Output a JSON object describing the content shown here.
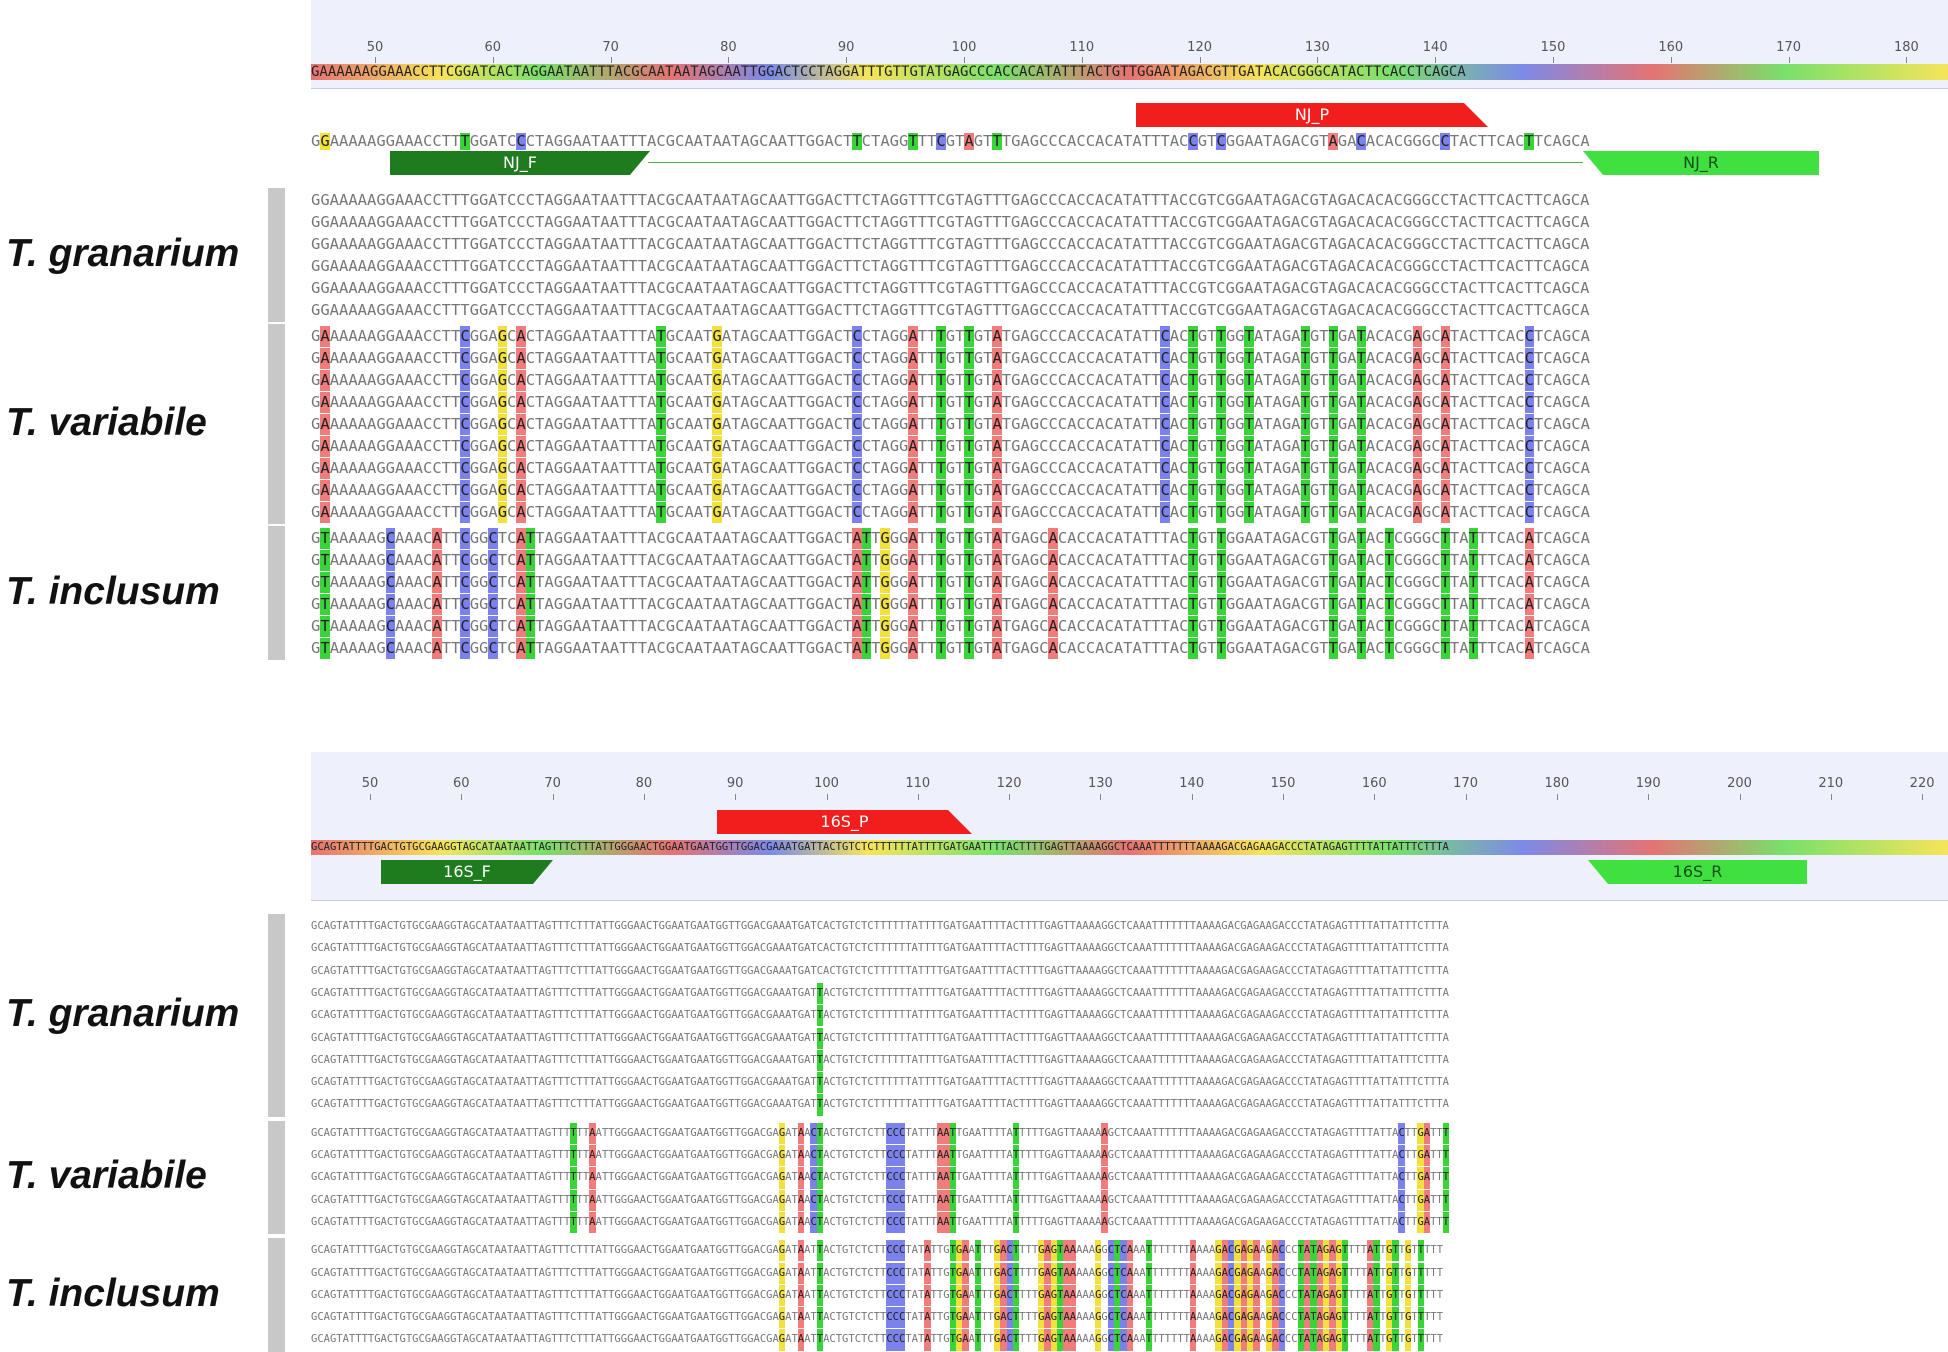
{
  "panel1": {
    "ruler_ticks": [
      50,
      60,
      70,
      80,
      90,
      100,
      110,
      120,
      130,
      140,
      150,
      160,
      170,
      180
    ],
    "consensus": "GAAAAAAGGAAACCTTCGGATCACTAGGAATAATTTACGCAATAATAGCAATTGGACTCCTAGGATTTGTTGTATGAGCCCACCACATATTTACTGTTGGAATAGACGTTGATACACGGGCATACTTCACCTCAGCA",
    "reference": "GGAAAAAGGAAACCTTTGGATCCCTAGGAATAATTTACGCAATAATAGCAATTGGACTTCTAGGTTTCGTAGTTTGAGCCCACCACATATTTACCGTCGGAATAGACGTAGACACACGGGCCTACTTCACTTCAGCA",
    "primers": {
      "forward": "NJ_F",
      "probe": "NJ_P",
      "reverse": "NJ_R"
    },
    "groups": [
      {
        "species": "T. granarium",
        "rows": [
          "GGAAAAAGGAAACCTTTGGATCCCTAGGAATAATTTACGCAATAATAGCAATTGGACTTCTAGGTTTCGTAGTTTGAGCCCACCACATATTTACCGTCGGAATAGACGTAGACACACGGGCCTACTTCACTTCAGCA",
          "GGAAAAAGGAAACCTTTGGATCCCTAGGAATAATTTACGCAATAATAGCAATTGGACTTCTAGGTTTCGTAGTTTGAGCCCACCACATATTTACCGTCGGAATAGACGTAGACACACGGGCCTACTTCACTTCAGCA",
          "GGAAAAAGGAAACCTTTGGATCCCTAGGAATAATTTACGCAATAATAGCAATTGGACTTCTAGGTTTCGTAGTTTGAGCCCACCACATATTTACCGTCGGAATAGACGTAGACACACGGGCCTACTTCACTTCAGCA",
          "GGAAAAAGGAAACCTTTGGATCCCTAGGAATAATTTACGCAATAATAGCAATTGGACTTCTAGGTTTCGTAGTTTGAGCCCACCACATATTTACCGTCGGAATAGACGTAGACACACGGGCCTACTTCACTTCAGCA",
          "GGAAAAAGGAAACCTTTGGATCCCTAGGAATAATTTACGCAATAATAGCAATTGGACTTCTAGGTTTCGTAGTTTGAGCCCACCACATATTTACCGTCGGAATAGACGTAGACACACGGGCCTACTTCACTTCAGCA",
          "GGAAAAAGGAAACCTTTGGATCCCTAGGAATAATTTACGCAATAATAGCAATTGGACTTCTAGGTTTCGTAGTTTGAGCCCACCACATATTTACCGTCGGAATAGACGTAGACACACGGGCCTACTTCACTTCAGCA"
        ]
      },
      {
        "species": "T. variabile",
        "rows": [
          "GAAAAAAGGAAACCTTCGGAGCACTAGGAATAATTTATGCAATGATAGCAATTGGACTCCTAGGATTTGTTGTATGAGCCCACCACATATTCACTGTTGGTATAGATGTTGATACACGAGCATACTTCACCTCAGCA",
          "GAAAAAAGGAAACCTTCGGAGCACTAGGAATAATTTATGCAATGATAGCAATTGGACTCCTAGGATTTGTTGTATGAGCCCACCACATATTCACTGTTGGTATAGATGTTGATACACGAGCATACTTCACCTCAGCA",
          "GAAAAAAGGAAACCTTCGGAGCACTAGGAATAATTTATGCAATGATAGCAATTGGACTCCTAGGATTTGTTGTATGAGCCCACCACATATTCACTGTTGGTATAGATGTTGATACACGAGCATACTTCACCTCAGCA",
          "GAAAAAAGGAAACCTTCGGAGCACTAGGAATAATTTATGCAATGATAGCAATTGGACTCCTAGGATTTGTTGTATGAGCCCACCACATATTCACTGTTGGTATAGATGTTGATACACGAGCATACTTCACCTCAGCA",
          "GAAAAAAGGAAACCTTCGGAGCACTAGGAATAATTTATGCAATGATAGCAATTGGACTCCTAGGATTTGTTGTATGAGCCCACCACATATTCACTGTTGGTATAGATGTTGATACACGAGCATACTTCACCTCAGCA",
          "GAAAAAAGGAAACCTTCGGAGCACTAGGAATAATTTATGCAATGATAGCAATTGGACTCCTAGGATTTGTTGTATGAGCCCACCACATATTCACTGTTGGTATAGATGTTGATACACGAGCATACTTCACCTCAGCA",
          "GAAAAAAGGAAACCTTCGGAGCACTAGGAATAATTTATGCAATGATAGCAATTGGACTCCTAGGATTTGTTGTATGAGCCCACCACATATTCACTGTTGGTATAGATGTTGATACACGAGCATACTTCACCTCAGCA",
          "GAAAAAAGGAAACCTTCGGAGCACTAGGAATAATTTATGCAATGATAGCAATTGGACTCCTAGGATTTGTTGTATGAGCCCACCACATATTCACTGTTGGTATAGATGTTGATACACGAGCATACTTCACCTCAGCA",
          "GAAAAAAGGAAACCTTCGGAGCACTAGGAATAATTTATGCAATGATAGCAATTGGACTCCTAGGATTTGTTGTATGAGCCCACCACATATTCACTGTTGGTATAGATGTTGATACACGAGCATACTTCACCTCAGCA"
        ]
      },
      {
        "species": "T. inclusum",
        "rows": [
          "GTAAAAAGCAAACATTCGGCTCATTAGGAATAATTTACGCAATAATAGCAATTGGACTATTGGGATTTGTTGTATGAGCACACCACATATTTACTGTTGGAATAGACGTTGATACTCGGGCTTATTTCACATCAGCA",
          "GTAAAAAGCAAACATTCGGCTCATTAGGAATAATTTACGCAATAATAGCAATTGGACTATTGGGATTTGTTGTATGAGCACACCACATATTTACTGTTGGAATAGACGTTGATACTCGGGCTTATTTCACATCAGCA",
          "GTAAAAAGCAAACATTCGGCTCATTAGGAATAATTTACGCAATAATAGCAATTGGACTATTGGGATTTGTTGTATGAGCACACCACATATTTACTGTTGGAATAGACGTTGATACTCGGGCTTATTTCACATCAGCA",
          "GTAAAAAGCAAACATTCGGCTCATTAGGAATAATTTACGCAATAATAGCAATTGGACTATTGGGATTTGTTGTATGAGCACACCACATATTTACTGTTGGAATAGACGTTGATACTCGGGCTTATTTCACATCAGCA",
          "GTAAAAAGCAAACATTCGGCTCATTAGGAATAATTTACGCAATAATAGCAATTGGACTATTGGGATTTGTTGTATGAGCACACCACATATTTACTGTTGGAATAGACGTTGATACTCGGGCTTATTTCACATCAGCA",
          "GTAAAAAGCAAACATTCGGCTCATTAGGAATAATTTACGCAATAATAGCAATTGGACTATTGGGATTTGTTGTATGAGCACACCACATATTTACTGTTGGAATAGACGTTGATACTCGGGCTTATTTCACATCAGCA"
        ]
      }
    ]
  },
  "panel2": {
    "ruler_ticks": [
      50,
      60,
      70,
      80,
      90,
      100,
      110,
      120,
      130,
      140,
      150,
      160,
      170,
      180,
      190,
      200,
      210,
      220
    ],
    "consensus": "GCAGTATTTTGACTGTGCGAAGGTAGCATAATAATTAGTTTCTTTATTGGGAACTGGAATGAATGGTTGGACGAAATGATTACTGTCTCTTTTTTATTTTGATGAATTTTACTTTTGAGTTAAAAGGCTCAAATTTTTTTAAAAGACGAGAAGACCCTATAGAGTTTTATTATTTCTTTA",
    "primers": {
      "forward": "16S_F",
      "probe": "16S_P",
      "reverse": "16S_R"
    },
    "groups": [
      {
        "species": "T. granarium",
        "rows": [
          "GCAGTATTTTGACTGTGCGAAGGTAGCATAATAATTAGTTTCTTTATTGGGAACTGGAATGAATGGTTGGACGAAATGATCACTGTCTCTTTTTTATTTTGATGAATTTTACTTTTGAGTTAAAAGGCTCAAATTTTTTTAAAAGACGAGAAGACCCTATAGAGTTTTATTATTTCTTTA",
          "GCAGTATTTTGACTGTGCGAAGGTAGCATAATAATTAGTTTCTTTATTGGGAACTGGAATGAATGGTTGGACGAAATGATCACTGTCTCTTTTTTATTTTGATGAATTTTACTTTTGAGTTAAAAGGCTCAAATTTTTTTAAAAGACGAGAAGACCCTATAGAGTTTTATTATTTCTTTA",
          "GCAGTATTTTGACTGTGCGAAGGTAGCATAATAATTAGTTTCTTTATTGGGAACTGGAATGAATGGTTGGACGAAATGATCACTGTCTCTTTTTTATTTTGATGAATTTTACTTTTGAGTTAAAAGGCTCAAATTTTTTTAAAAGACGAGAAGACCCTATAGAGTTTTATTATTTCTTTA",
          "GCAGTATTTTGACTGTGCGAAGGTAGCATAATAATTAGTTTCTTTATTGGGAACTGGAATGAATGGTTGGACGAAATGATTACTGTCTCTTTTTTATTTTGATGAATTTTACTTTTGAGTTAAAAGGCTCAAATTTTTTTAAAAGACGAGAAGACCCTATAGAGTTTTATTATTTCTTTA",
          "GCAGTATTTTGACTGTGCGAAGGTAGCATAATAATTAGTTTCTTTATTGGGAACTGGAATGAATGGTTGGACGAAATGATTACTGTCTCTTTTTTATTTTGATGAATTTTACTTTTGAGTTAAAAGGCTCAAATTTTTTTAAAAGACGAGAAGACCCTATAGAGTTTTATTATTTCTTTA",
          "GCAGTATTTTGACTGTGCGAAGGTAGCATAATAATTAGTTTCTTTATTGGGAACTGGAATGAATGGTTGGACGAAATGATTACTGTCTCTTTTTTATTTTGATGAATTTTACTTTTGAGTTAAAAGGCTCAAATTTTTTTAAAAGACGAGAAGACCCTATAGAGTTTTATTATTTCTTTA",
          "GCAGTATTTTGACTGTGCGAAGGTAGCATAATAATTAGTTTCTTTATTGGGAACTGGAATGAATGGTTGGACGAAATGATTACTGTCTCTTTTTTATTTTGATGAATTTTACTTTTGAGTTAAAAGGCTCAAATTTTTTTAAAAGACGAGAAGACCCTATAGAGTTTTATTATTTCTTTA",
          "GCAGTATTTTGACTGTGCGAAGGTAGCATAATAATTAGTTTCTTTATTGGGAACTGGAATGAATGGTTGGACGAAATGATTACTGTCTCTTTTTTATTTTGATGAATTTTACTTTTGAGTTAAAAGGCTCAAATTTTTTTAAAAGACGAGAAGACCCTATAGAGTTTTATTATTTCTTTA",
          "GCAGTATTTTGACTGTGCGAAGGTAGCATAATAATTAGTTTCTTTATTGGGAACTGGAATGAATGGTTGGACGAAATGATTACTGTCTCTTTTTTATTTTGATGAATTTTACTTTTGAGTTAAAAGGCTCAAATTTTTTTAAAAGACGAGAAGACCCTATAGAGTTTTATTATTTCTTTA"
        ]
      },
      {
        "species": "T. variabile",
        "rows": [
          "GCAGTATTTTGACTGTGCGAAGGTAGCATAATAATTAGTTTTTTAATTGGGAACTGGAATGAATGGTTGGACGAGATAACTACTGTCTCTTCCCTATTTAATTGAATTTTATTTTTGAGTTAAAAAGCTCAAATTTTTTTAAAAGACGAGAAGACCCTATAGAGTTTTATTACTTGATTT",
          "GCAGTATTTTGACTGTGCGAAGGTAGCATAATAATTAGTTTTTTAATTGGGAACTGGAATGAATGGTTGGACGAGATAACTACTGTCTCTTCCCTATTTAATTGAATTTTATTTTTGAGTTAAAAAGCTCAAATTTTTTTAAAAGACGAGAAGACCCTATAGAGTTTTATTACTTGATTT",
          "GCAGTATTTTGACTGTGCGAAGGTAGCATAATAATTAGTTTTTTAATTGGGAACTGGAATGAATGGTTGGACGAGATAACTACTGTCTCTTCCCTATTTAATTGAATTTTATTTTTGAGTTAAAAAGCTCAAATTTTTTTAAAAGACGAGAAGACCCTATAGAGTTTTATTACTTGATTT",
          "GCAGTATTTTGACTGTGCGAAGGTAGCATAATAATTAGTTTTTTAATTGGGAACTGGAATGAATGGTTGGACGAGATAACTACTGTCTCTTCCCTATTTAATTGAATTTTATTTTTGAGTTAAAAAGCTCAAATTTTTTTAAAAGACGAGAAGACCCTATAGAGTTTTATTACTTGATTT",
          "GCAGTATTTTGACTGTGCGAAGGTAGCATAATAATTAGTTTTTTAATTGGGAACTGGAATGAATGGTTGGACGAGATAACTACTGTCTCTTCCCTATTTAATTGAATTTTATTTTTGAGTTAAAAAGCTCAAATTTTTTTAAAAGACGAGAAGACCCTATAGAGTTTTATTACTTGATTT"
        ]
      },
      {
        "species": "T. inclusum",
        "rows": [
          "GCAGTATTTTGACTGTGCGAAGGTAGCATAATAATTAGTTTCTTTATTGGGAACTGGAATGAATGGTTGGACGAGATAATTACTGTCTCTTCCCTATATTGTGAATTTGACTTTTGAGTAAAAAGGCTCAAATTTTTTTAAAAGACGAGAAGACCCTATAGAGTTTTATTGTTGTTTTT",
          "GCAGTATTTTGACTGTGCGAAGGTAGCATAATAATTAGTTTCTTTATTGGGAACTGGAATGAATGGTTGGACGAGATAATTACTGTCTCTTCCCTATATTGTGAATTTGACTTTTGAGTAAAAAGGCTCAAATTTTTTTAAAAGACGAGAAGACCCTATAGAGTTTTATTGTTGTTTTT",
          "GCAGTATTTTGACTGTGCGAAGGTAGCATAATAATTAGTTTCTTTATTGGGAACTGGAATGAATGGTTGGACGAGATAATTACTGTCTCTTCCCTATATTGTGAATTTGACTTTTGAGTAAAAAGGCTCAAATTTTTTTAAAAGACGAGAAGACCCTATAGAGTTTTATTGTTGTTTTT",
          "GCAGTATTTTGACTGTGCGAAGGTAGCATAATAATTAGTTTCTTTATTGGGAACTGGAATGAATGGTTGGACGAGATAATTACTGTCTCTTCCCTATATTGTGAATTTGACTTTTGAGTAAAAAGGCTCAAATTTTTTTAAAAGACGAGAAGACCCTATAGAGTTTTATTGTTGTTTTT",
          "GCAGTATTTTGACTGTGCGAAGGTAGCATAATAATTAGTTTCTTTATTGGGAACTGGAATGAATGGTTGGACGAGATAATTACTGTCTCTTCCCTATATTGTGAATTTGACTTTTGAGTAAAAAGGCTCAAATTTTTTTAAAAGACGAGAAGACCCTATAGAGTTTTATTGTTGTTTTT"
        ]
      }
    ]
  },
  "colors": {
    "A": "#f07c7c",
    "C": "#7c82ec",
    "G": "#f2e03c",
    "T": "#38d438",
    "forward_primer": "#1e7b1e",
    "reverse_primer": "#3fe03f",
    "probe": "#f21d1d"
  }
}
